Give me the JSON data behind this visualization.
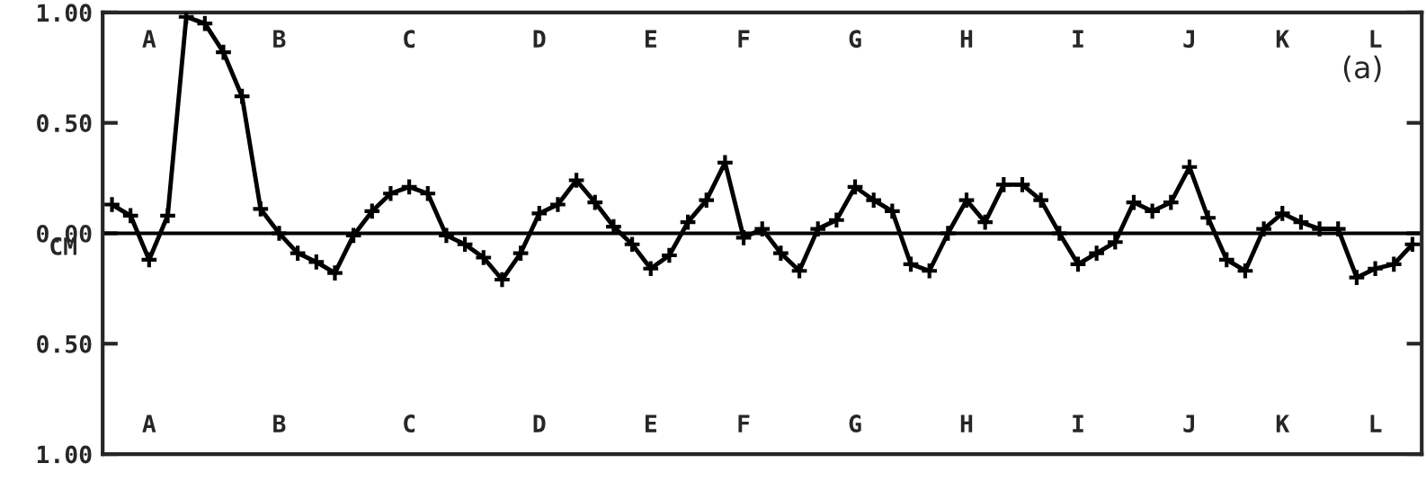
{
  "chart_data": {
    "type": "line",
    "ylabel": "CM",
    "annotations": [
      "(a)"
    ],
    "categories": [
      null,
      null,
      "A",
      null,
      null,
      null,
      null,
      null,
      null,
      "B",
      null,
      null,
      null,
      null,
      null,
      null,
      "C",
      null,
      null,
      null,
      null,
      null,
      null,
      "D",
      null,
      null,
      null,
      null,
      null,
      "E",
      null,
      null,
      null,
      null,
      "F",
      null,
      null,
      null,
      null,
      null,
      "G",
      null,
      null,
      null,
      null,
      null,
      "H",
      null,
      null,
      null,
      null,
      null,
      "I",
      null,
      null,
      null,
      null,
      null,
      "J",
      null,
      null,
      null,
      null,
      "K",
      null,
      null,
      null,
      null,
      "L",
      null,
      null
    ],
    "ylim": [
      -1,
      1
    ],
    "yticks": [
      {
        "value": 1,
        "label": "1.00"
      },
      {
        "value": 0.5,
        "label": "0.50"
      },
      {
        "value": 0,
        "label": "0.00"
      },
      {
        "value": -0.5,
        "label": "0.50"
      },
      {
        "value": -1,
        "label": "1.00"
      }
    ],
    "ref_lines": [
      {
        "axis": "y",
        "value": 0,
        "color": "#000000"
      }
    ],
    "marker": "cross",
    "line_style": "solid",
    "grid": false,
    "legend": false,
    "series": [
      {
        "color": "#000000",
        "values": [
          0.13,
          0.08,
          -0.12,
          0.08,
          0.98,
          0.95,
          0.82,
          0.62,
          0.11,
          0.0,
          -0.09,
          -0.13,
          -0.18,
          -0.01,
          0.1,
          0.18,
          0.21,
          0.18,
          -0.01,
          -0.05,
          -0.11,
          -0.21,
          -0.09,
          0.09,
          0.13,
          0.24,
          0.14,
          0.03,
          -0.05,
          -0.16,
          -0.1,
          0.05,
          0.15,
          0.32,
          -0.02,
          0.02,
          -0.09,
          -0.17,
          0.02,
          0.06,
          0.21,
          0.15,
          0.1,
          -0.14,
          -0.17,
          0.0,
          0.15,
          0.05,
          0.22,
          0.22,
          0.15,
          0.0,
          -0.14,
          -0.09,
          -0.04,
          0.14,
          0.1,
          0.14,
          0.3,
          0.07,
          -0.12,
          -0.17,
          0.02,
          0.09,
          0.05,
          0.02,
          0.02,
          -0.2,
          -0.16,
          -0.14,
          -0.05
        ]
      }
    ]
  }
}
